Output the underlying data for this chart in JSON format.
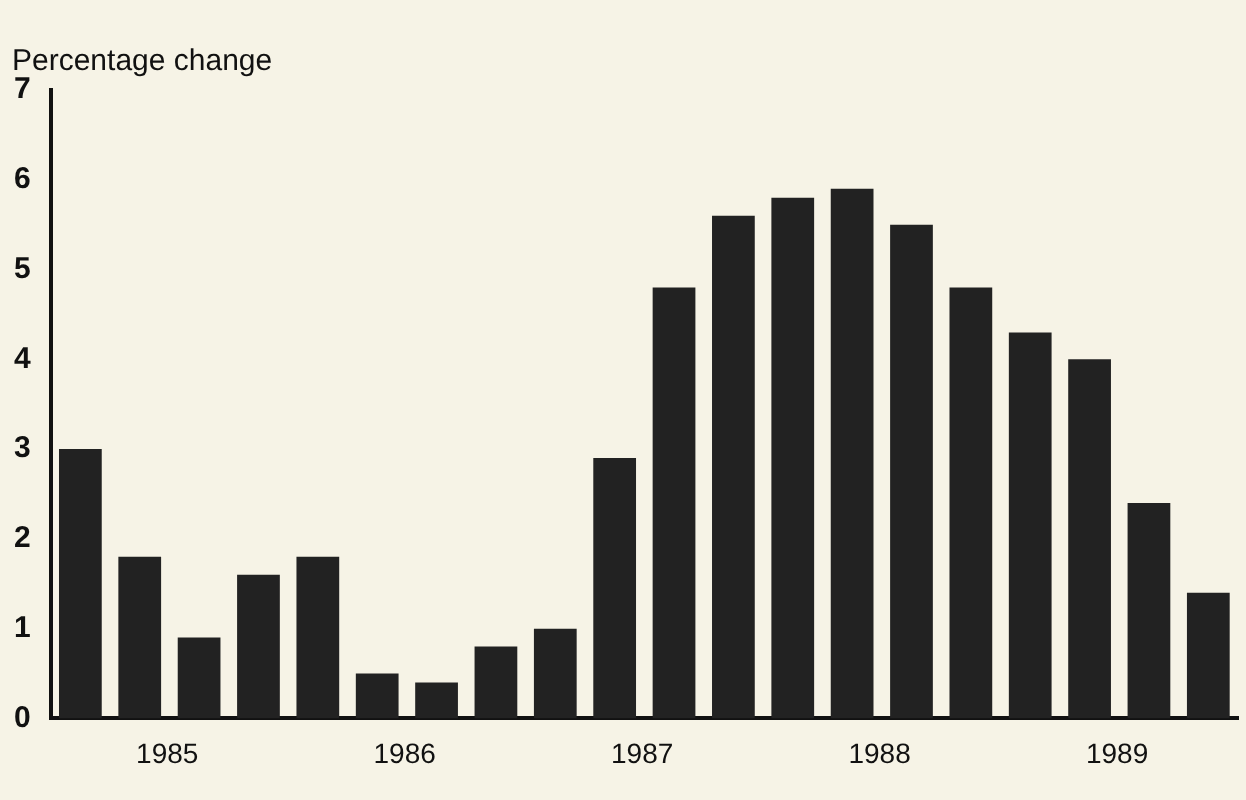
{
  "chart_data": {
    "type": "bar",
    "ylabel": "Percentage change",
    "categories": [
      null,
      "1985",
      null,
      null,
      null,
      "1986",
      null,
      null,
      null,
      "1987",
      null,
      null,
      null,
      "1988",
      null,
      null,
      null,
      "1989",
      null,
      null
    ],
    "values": [
      3.0,
      1.8,
      0.9,
      1.6,
      1.8,
      0.5,
      0.4,
      0.8,
      1.0,
      2.9,
      4.8,
      5.6,
      5.8,
      5.9,
      5.5,
      4.8,
      4.3,
      4.0,
      2.4,
      1.4
    ],
    "color": "#222222",
    "ylim": [
      0,
      7
    ],
    "yticks": [
      0,
      1,
      2,
      3,
      4,
      5,
      6,
      7
    ],
    "grid": false,
    "legend": false
  }
}
